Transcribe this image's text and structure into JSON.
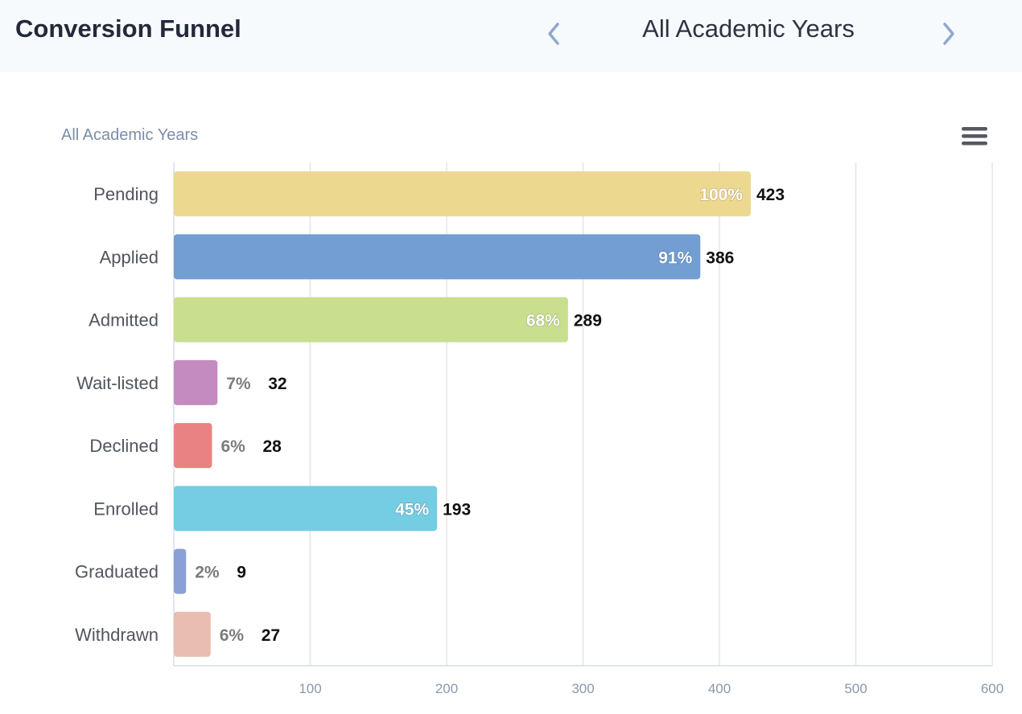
{
  "header": {
    "title": "Conversion Funnel",
    "year_selector": {
      "label": "All Academic Years",
      "prev_icon": "chevron-left-icon",
      "next_icon": "chevron-right-icon"
    }
  },
  "chart": {
    "menu_icon": "hamburger-menu-icon"
  },
  "colors": {
    "accent": "#8fa8cf",
    "subtitle": "#7a8ea8"
  },
  "chart_data": {
    "type": "bar",
    "orientation": "horizontal",
    "subtitle": "All Academic Years",
    "categories": [
      "Pending",
      "Applied",
      "Admitted",
      "Wait-listed",
      "Declined",
      "Enrolled",
      "Graduated",
      "Withdrawn"
    ],
    "values": [
      423,
      386,
      289,
      32,
      28,
      193,
      9,
      27
    ],
    "percent_labels": [
      "100%",
      "91%",
      "68%",
      "7%",
      "6%",
      "45%",
      "2%",
      "6%"
    ],
    "colors": [
      "#edd890",
      "#739ed4",
      "#c9de8f",
      "#c48bc0",
      "#e98283",
      "#74cde3",
      "#8aa0d6",
      "#e9bdb0"
    ],
    "xlim": [
      0,
      600
    ],
    "x_ticks": [
      100,
      200,
      300,
      400,
      500,
      600
    ],
    "grid": true,
    "legend": "none"
  }
}
